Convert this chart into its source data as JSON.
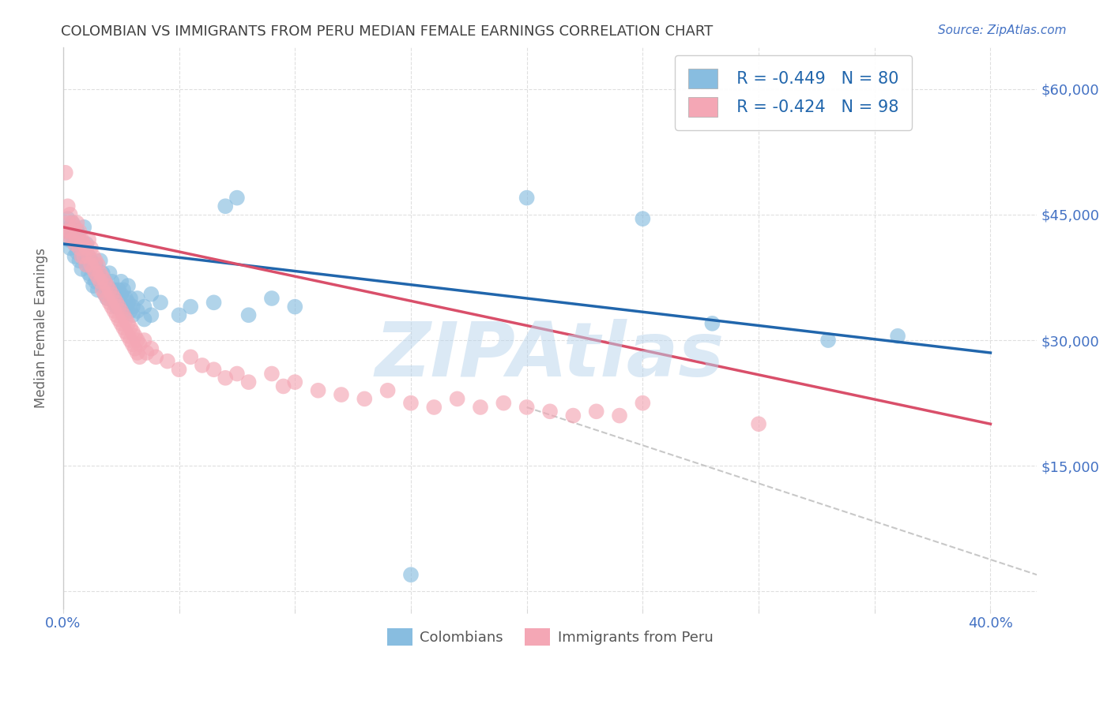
{
  "title": "COLOMBIAN VS IMMIGRANTS FROM PERU MEDIAN FEMALE EARNINGS CORRELATION CHART",
  "source": "Source: ZipAtlas.com",
  "ylabel": "Median Female Earnings",
  "yticks": [
    0,
    15000,
    30000,
    45000,
    60000
  ],
  "ytick_labels": [
    "",
    "$15,000",
    "$30,000",
    "$45,000",
    "$60,000"
  ],
  "xlim": [
    0.0,
    0.42
  ],
  "ylim": [
    -2000,
    65000
  ],
  "legend_blue_r": "R = -0.449",
  "legend_blue_n": "N = 80",
  "legend_pink_r": "R = -0.424",
  "legend_pink_n": "N = 98",
  "colombian_color": "#88bde0",
  "peru_color": "#f4a7b5",
  "trendline_blue": "#2166ac",
  "trendline_pink": "#d94f6a",
  "trendline_dashed_color": "#c8c8c8",
  "watermark": "ZIPAtlas",
  "watermark_color": "#b8d4ec",
  "background_color": "#ffffff",
  "grid_color": "#d8d8d8",
  "title_color": "#404040",
  "axis_label_color": "#4472c4",
  "blue_scatter": [
    [
      0.001,
      43000
    ],
    [
      0.002,
      44500
    ],
    [
      0.002,
      42000
    ],
    [
      0.003,
      43500
    ],
    [
      0.003,
      41000
    ],
    [
      0.004,
      44000
    ],
    [
      0.004,
      42500
    ],
    [
      0.005,
      41500
    ],
    [
      0.005,
      40000
    ],
    [
      0.006,
      43000
    ],
    [
      0.006,
      40500
    ],
    [
      0.007,
      42000
    ],
    [
      0.007,
      39500
    ],
    [
      0.008,
      41000
    ],
    [
      0.008,
      38500
    ],
    [
      0.009,
      40000
    ],
    [
      0.009,
      43500
    ],
    [
      0.01,
      39000
    ],
    [
      0.01,
      41500
    ],
    [
      0.011,
      38000
    ],
    [
      0.011,
      40000
    ],
    [
      0.012,
      39500
    ],
    [
      0.012,
      37500
    ],
    [
      0.013,
      38500
    ],
    [
      0.013,
      36500
    ],
    [
      0.014,
      39000
    ],
    [
      0.014,
      37000
    ],
    [
      0.015,
      38000
    ],
    [
      0.015,
      36000
    ],
    [
      0.016,
      39500
    ],
    [
      0.016,
      37500
    ],
    [
      0.017,
      38000
    ],
    [
      0.017,
      36500
    ],
    [
      0.018,
      37000
    ],
    [
      0.018,
      35500
    ],
    [
      0.019,
      36500
    ],
    [
      0.019,
      35000
    ],
    [
      0.02,
      38000
    ],
    [
      0.02,
      36000
    ],
    [
      0.021,
      37000
    ],
    [
      0.021,
      35000
    ],
    [
      0.022,
      36000
    ],
    [
      0.022,
      34500
    ],
    [
      0.023,
      35500
    ],
    [
      0.023,
      34000
    ],
    [
      0.024,
      36000
    ],
    [
      0.024,
      35000
    ],
    [
      0.025,
      37000
    ],
    [
      0.025,
      35500
    ],
    [
      0.026,
      36000
    ],
    [
      0.026,
      34000
    ],
    [
      0.027,
      35000
    ],
    [
      0.027,
      34000
    ],
    [
      0.028,
      36500
    ],
    [
      0.028,
      34500
    ],
    [
      0.029,
      35000
    ],
    [
      0.029,
      33500
    ],
    [
      0.03,
      34000
    ],
    [
      0.03,
      33000
    ],
    [
      0.032,
      35000
    ],
    [
      0.032,
      33500
    ],
    [
      0.035,
      34000
    ],
    [
      0.035,
      32500
    ],
    [
      0.038,
      33000
    ],
    [
      0.038,
      35500
    ],
    [
      0.042,
      34500
    ],
    [
      0.05,
      33000
    ],
    [
      0.055,
      34000
    ],
    [
      0.065,
      34500
    ],
    [
      0.07,
      46000
    ],
    [
      0.075,
      47000
    ],
    [
      0.08,
      33000
    ],
    [
      0.09,
      35000
    ],
    [
      0.1,
      34000
    ],
    [
      0.15,
      2000
    ],
    [
      0.2,
      47000
    ],
    [
      0.25,
      44500
    ],
    [
      0.28,
      32000
    ],
    [
      0.33,
      30000
    ],
    [
      0.36,
      30500
    ]
  ],
  "pink_scatter": [
    [
      0.001,
      43000
    ],
    [
      0.001,
      50000
    ],
    [
      0.002,
      44000
    ],
    [
      0.002,
      46000
    ],
    [
      0.002,
      42500
    ],
    [
      0.003,
      45000
    ],
    [
      0.003,
      43000
    ],
    [
      0.004,
      44000
    ],
    [
      0.004,
      42000
    ],
    [
      0.005,
      43500
    ],
    [
      0.005,
      41500
    ],
    [
      0.006,
      44000
    ],
    [
      0.006,
      42000
    ],
    [
      0.007,
      43000
    ],
    [
      0.007,
      41000
    ],
    [
      0.008,
      42000
    ],
    [
      0.008,
      40000
    ],
    [
      0.009,
      41500
    ],
    [
      0.009,
      40000
    ],
    [
      0.01,
      41000
    ],
    [
      0.01,
      39000
    ],
    [
      0.011,
      42000
    ],
    [
      0.011,
      40000
    ],
    [
      0.012,
      41000
    ],
    [
      0.012,
      39000
    ],
    [
      0.013,
      40000
    ],
    [
      0.013,
      38500
    ],
    [
      0.014,
      39500
    ],
    [
      0.014,
      38000
    ],
    [
      0.015,
      39000
    ],
    [
      0.015,
      37500
    ],
    [
      0.016,
      38000
    ],
    [
      0.016,
      37000
    ],
    [
      0.017,
      37500
    ],
    [
      0.017,
      36000
    ],
    [
      0.018,
      37000
    ],
    [
      0.018,
      35500
    ],
    [
      0.019,
      36500
    ],
    [
      0.019,
      35000
    ],
    [
      0.02,
      36000
    ],
    [
      0.02,
      34500
    ],
    [
      0.021,
      35500
    ],
    [
      0.021,
      34000
    ],
    [
      0.022,
      35000
    ],
    [
      0.022,
      33500
    ],
    [
      0.023,
      34500
    ],
    [
      0.023,
      33000
    ],
    [
      0.024,
      34000
    ],
    [
      0.024,
      32500
    ],
    [
      0.025,
      33500
    ],
    [
      0.025,
      32000
    ],
    [
      0.026,
      33000
    ],
    [
      0.026,
      31500
    ],
    [
      0.027,
      32500
    ],
    [
      0.027,
      31000
    ],
    [
      0.028,
      32000
    ],
    [
      0.028,
      30500
    ],
    [
      0.029,
      31500
    ],
    [
      0.029,
      30000
    ],
    [
      0.03,
      31000
    ],
    [
      0.03,
      29500
    ],
    [
      0.031,
      30500
    ],
    [
      0.031,
      29000
    ],
    [
      0.032,
      30000
    ],
    [
      0.032,
      28500
    ],
    [
      0.033,
      29500
    ],
    [
      0.033,
      28000
    ],
    [
      0.035,
      30000
    ],
    [
      0.036,
      28500
    ],
    [
      0.038,
      29000
    ],
    [
      0.04,
      28000
    ],
    [
      0.045,
      27500
    ],
    [
      0.05,
      26500
    ],
    [
      0.055,
      28000
    ],
    [
      0.06,
      27000
    ],
    [
      0.065,
      26500
    ],
    [
      0.07,
      25500
    ],
    [
      0.075,
      26000
    ],
    [
      0.08,
      25000
    ],
    [
      0.09,
      26000
    ],
    [
      0.095,
      24500
    ],
    [
      0.1,
      25000
    ],
    [
      0.11,
      24000
    ],
    [
      0.12,
      23500
    ],
    [
      0.13,
      23000
    ],
    [
      0.14,
      24000
    ],
    [
      0.15,
      22500
    ],
    [
      0.16,
      22000
    ],
    [
      0.17,
      23000
    ],
    [
      0.18,
      22000
    ],
    [
      0.19,
      22500
    ],
    [
      0.2,
      22000
    ],
    [
      0.21,
      21500
    ],
    [
      0.22,
      21000
    ],
    [
      0.23,
      21500
    ],
    [
      0.24,
      21000
    ],
    [
      0.25,
      22500
    ],
    [
      0.3,
      20000
    ]
  ],
  "blue_trend_x": [
    0.0,
    0.4
  ],
  "blue_trend_y": [
    41500,
    28500
  ],
  "pink_trend_x": [
    0.0,
    0.4
  ],
  "pink_trend_y": [
    43500,
    20000
  ],
  "dashed_trend_x": [
    0.2,
    0.42
  ],
  "dashed_trend_y": [
    22000,
    2000
  ],
  "xtick_positions": [
    0.0,
    0.05,
    0.1,
    0.15,
    0.2,
    0.25,
    0.3,
    0.35,
    0.4
  ],
  "xtick_show": [
    true,
    false,
    false,
    false,
    false,
    false,
    false,
    false,
    true
  ]
}
